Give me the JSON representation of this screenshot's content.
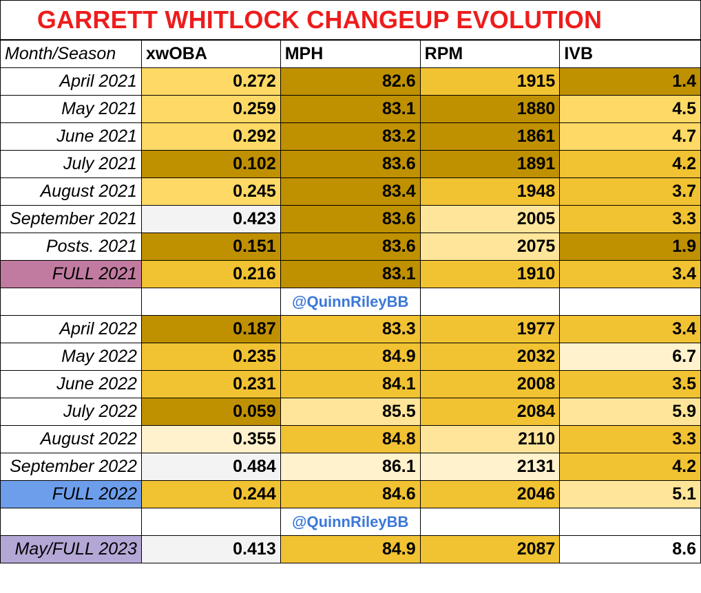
{
  "title": "GARRETT WHITLOCK CHANGEUP EVOLUTION",
  "headers": [
    "Month/Season",
    "xwOBA",
    "MPH",
    "RPM",
    "IVB"
  ],
  "credit": "@QuinnRileyBB",
  "colors": {
    "title": "#ee1c1c",
    "dark_gold": "#bf9000",
    "gold": "#f1c232",
    "light_gold": "#ffd966",
    "pale_gold": "#ffe599",
    "cream": "#fff2cc",
    "gray_white": "#f3f3f3",
    "full_2021_label": "#c27ba0",
    "full_2022_label": "#6d9eeb",
    "full_2023_label": "#b4a7d6",
    "credit_text": "#3c78d8"
  },
  "rows": [
    {
      "label": "April 2021",
      "xwoba": "0.272",
      "mph": "82.6",
      "rpm": "1915",
      "ivb": "1.4",
      "c": [
        "#ffffff",
        "#ffd966",
        "#bf9000",
        "#f1c232",
        "#bf9000"
      ]
    },
    {
      "label": "May 2021",
      "xwoba": "0.259",
      "mph": "83.1",
      "rpm": "1880",
      "ivb": "4.5",
      "c": [
        "#ffffff",
        "#ffd966",
        "#bf9000",
        "#bf9000",
        "#ffd966"
      ]
    },
    {
      "label": "June 2021",
      "xwoba": "0.292",
      "mph": "83.2",
      "rpm": "1861",
      "ivb": "4.7",
      "c": [
        "#ffffff",
        "#ffd966",
        "#bf9000",
        "#bf9000",
        "#ffd966"
      ]
    },
    {
      "label": "July 2021",
      "xwoba": "0.102",
      "mph": "83.6",
      "rpm": "1891",
      "ivb": "4.2",
      "c": [
        "#ffffff",
        "#bf9000",
        "#bf9000",
        "#bf9000",
        "#f1c232"
      ]
    },
    {
      "label": "August 2021",
      "xwoba": "0.245",
      "mph": "83.4",
      "rpm": "1948",
      "ivb": "3.7",
      "c": [
        "#ffffff",
        "#ffd966",
        "#bf9000",
        "#f1c232",
        "#f1c232"
      ]
    },
    {
      "label": "September 2021",
      "xwoba": "0.423",
      "mph": "83.6",
      "rpm": "2005",
      "ivb": "3.3",
      "c": [
        "#ffffff",
        "#f3f3f3",
        "#bf9000",
        "#ffe599",
        "#f1c232"
      ]
    },
    {
      "label": "Posts. 2021",
      "xwoba": "0.151",
      "mph": "83.6",
      "rpm": "2075",
      "ivb": "1.9",
      "c": [
        "#ffffff",
        "#bf9000",
        "#bf9000",
        "#ffe599",
        "#bf9000"
      ]
    },
    {
      "label": "FULL 2021",
      "xwoba": "0.216",
      "mph": "83.1",
      "rpm": "1910",
      "ivb": "3.4",
      "c": [
        "#c27ba0",
        "#f1c232",
        "#bf9000",
        "#f1c232",
        "#f1c232"
      ]
    },
    {
      "credit": true
    },
    {
      "label": "April 2022",
      "xwoba": "0.187",
      "mph": "83.3",
      "rpm": "1977",
      "ivb": "3.4",
      "c": [
        "#ffffff",
        "#bf9000",
        "#f1c232",
        "#f1c232",
        "#f1c232"
      ]
    },
    {
      "label": "May 2022",
      "xwoba": "0.235",
      "mph": "84.9",
      "rpm": "2032",
      "ivb": "6.7",
      "c": [
        "#ffffff",
        "#f1c232",
        "#f1c232",
        "#f1c232",
        "#fff2cc"
      ]
    },
    {
      "label": "June 2022",
      "xwoba": "0.231",
      "mph": "84.1",
      "rpm": "2008",
      "ivb": "3.5",
      "c": [
        "#ffffff",
        "#f1c232",
        "#f1c232",
        "#f1c232",
        "#f1c232"
      ]
    },
    {
      "label": "July 2022",
      "xwoba": "0.059",
      "mph": "85.5",
      "rpm": "2084",
      "ivb": "5.9",
      "c": [
        "#ffffff",
        "#bf9000",
        "#ffe599",
        "#f1c232",
        "#ffe599"
      ]
    },
    {
      "label": "August 2022",
      "xwoba": "0.355",
      "mph": "84.8",
      "rpm": "2110",
      "ivb": "3.3",
      "c": [
        "#ffffff",
        "#fff2cc",
        "#f1c232",
        "#ffe599",
        "#f1c232"
      ]
    },
    {
      "label": "September 2022",
      "xwoba": "0.484",
      "mph": "86.1",
      "rpm": "2131",
      "ivb": "4.2",
      "c": [
        "#ffffff",
        "#f3f3f3",
        "#fff2cc",
        "#fff2cc",
        "#f1c232"
      ]
    },
    {
      "label": "FULL 2022",
      "xwoba": "0.244",
      "mph": "84.6",
      "rpm": "2046",
      "ivb": "5.1",
      "c": [
        "#6d9eeb",
        "#f1c232",
        "#f1c232",
        "#f1c232",
        "#ffe599"
      ]
    },
    {
      "credit": true
    },
    {
      "label": "May/FULL 2023",
      "xwoba": "0.413",
      "mph": "84.9",
      "rpm": "2087",
      "ivb": "8.6",
      "c": [
        "#b4a7d6",
        "#f3f3f3",
        "#f1c232",
        "#f1c232",
        "#ffffff"
      ]
    }
  ]
}
